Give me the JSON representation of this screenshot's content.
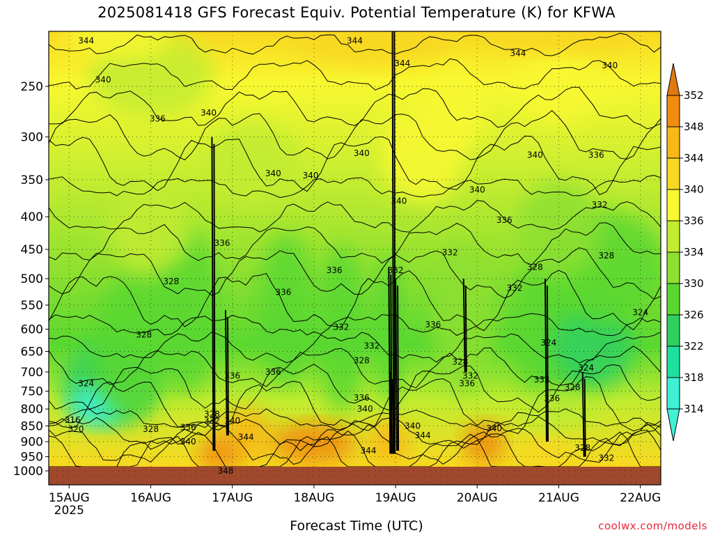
{
  "title": "2025081418 GFS Forecast Equiv. Potential Temperature (K) for KFWA",
  "xlabel": "Forecast Time (UTC)",
  "credit": "coolwx.com/models",
  "colors": {
    "ground": "#a0492d",
    "ground_dots": "#6b2a16",
    "scale": [
      "#3ff0d6",
      "#20e0a0",
      "#30d060",
      "#5ad830",
      "#8ee030",
      "#c2ec30",
      "#f8f830",
      "#f8d820",
      "#f8b818",
      "#f08c10"
    ]
  },
  "chart_data": {
    "type": "heatmap",
    "title": "2025081418 GFS Forecast Equiv. Potential Temperature (K) for KFWA",
    "xlabel": "Forecast Time (UTC)",
    "ylabel": "",
    "y_axis": "pressure (hPa), log scale, inverted",
    "ylim": [
      1000,
      200
    ],
    "y_ticks": [
      250,
      300,
      350,
      400,
      450,
      500,
      550,
      600,
      650,
      700,
      750,
      800,
      850,
      900,
      950,
      1000
    ],
    "x_ticks": [
      {
        "label": "15AUG",
        "sub": "2025",
        "hour": 6
      },
      {
        "label": "16AUG",
        "sub": "",
        "hour": 30
      },
      {
        "label": "17AUG",
        "sub": "",
        "hour": 54
      },
      {
        "label": "18AUG",
        "sub": "",
        "hour": 78
      },
      {
        "label": "19AUG",
        "sub": "",
        "hour": 102
      },
      {
        "label": "20AUG",
        "sub": "",
        "hour": 126
      },
      {
        "label": "21AUG",
        "sub": "",
        "hour": 150
      },
      {
        "label": "22AUG",
        "sub": "",
        "hour": 174
      }
    ],
    "xlim_hours": [
      0,
      180
    ],
    "grid": true,
    "colorbar": {
      "labels": [
        314,
        318,
        322,
        326,
        330,
        334,
        336,
        340,
        344,
        348,
        352
      ],
      "extend": "both"
    },
    "contour_labels": [
      {
        "v": 344,
        "h": 11,
        "p": 212
      },
      {
        "v": 340,
        "h": 16,
        "p": 244
      },
      {
        "v": 336,
        "h": 32,
        "p": 281
      },
      {
        "v": 340,
        "h": 47,
        "p": 275
      },
      {
        "v": 336,
        "h": 51,
        "p": 440
      },
      {
        "v": 328,
        "h": 36,
        "p": 505
      },
      {
        "v": 328,
        "h": 28,
        "p": 612
      },
      {
        "v": 324,
        "h": 11,
        "p": 730
      },
      {
        "v": 316,
        "h": 7,
        "p": 833
      },
      {
        "v": 320,
        "h": 8,
        "p": 860
      },
      {
        "v": 328,
        "h": 30,
        "p": 860
      },
      {
        "v": 336,
        "h": 41,
        "p": 855
      },
      {
        "v": 340,
        "h": 41,
        "p": 900
      },
      {
        "v": 328,
        "h": 48,
        "p": 815
      },
      {
        "v": 332,
        "h": 48,
        "p": 835
      },
      {
        "v": 340,
        "h": 54,
        "p": 835
      },
      {
        "v": 336,
        "h": 54,
        "p": 710
      },
      {
        "v": 344,
        "h": 58,
        "p": 885
      },
      {
        "v": 348,
        "h": 52,
        "p": 1000
      },
      {
        "v": 340,
        "h": 66,
        "p": 342
      },
      {
        "v": 340,
        "h": 77,
        "p": 345
      },
      {
        "v": 336,
        "h": 69,
        "p": 525
      },
      {
        "v": 336,
        "h": 66,
        "p": 700
      },
      {
        "v": 336,
        "h": 84,
        "p": 485
      },
      {
        "v": 332,
        "h": 86,
        "p": 595
      },
      {
        "v": 340,
        "h": 92,
        "p": 318
      },
      {
        "v": 344,
        "h": 90,
        "p": 212
      },
      {
        "v": 328,
        "h": 92,
        "p": 672
      },
      {
        "v": 332,
        "h": 95,
        "p": 637
      },
      {
        "v": 336,
        "h": 92,
        "p": 768
      },
      {
        "v": 340,
        "h": 93,
        "p": 800
      },
      {
        "v": 344,
        "h": 94,
        "p": 930
      },
      {
        "v": 332,
        "h": 102,
        "p": 485
      },
      {
        "v": 344,
        "h": 104,
        "p": 230
      },
      {
        "v": 340,
        "h": 103,
        "p": 378
      },
      {
        "v": 340,
        "h": 107,
        "p": 850
      },
      {
        "v": 344,
        "h": 110,
        "p": 880
      },
      {
        "v": 336,
        "h": 113,
        "p": 590
      },
      {
        "v": 332,
        "h": 118,
        "p": 455
      },
      {
        "v": 340,
        "h": 126,
        "p": 363
      },
      {
        "v": 328,
        "h": 121,
        "p": 675
      },
      {
        "v": 332,
        "h": 124,
        "p": 710
      },
      {
        "v": 336,
        "h": 123,
        "p": 730
      },
      {
        "v": 340,
        "h": 131,
        "p": 858
      },
      {
        "v": 336,
        "h": 134,
        "p": 405
      },
      {
        "v": 332,
        "h": 137,
        "p": 517
      },
      {
        "v": 328,
        "h": 143,
        "p": 480
      },
      {
        "v": 344,
        "h": 138,
        "p": 222
      },
      {
        "v": 340,
        "h": 143,
        "p": 320
      },
      {
        "v": 324,
        "h": 147,
        "p": 630
      },
      {
        "v": 332,
        "h": 145,
        "p": 720
      },
      {
        "v": 336,
        "h": 148,
        "p": 770
      },
      {
        "v": 328,
        "h": 154,
        "p": 740
      },
      {
        "v": 324,
        "h": 158,
        "p": 690
      },
      {
        "v": 336,
        "h": 161,
        "p": 320
      },
      {
        "v": 332,
        "h": 162,
        "p": 383
      },
      {
        "v": 328,
        "h": 164,
        "p": 460
      },
      {
        "v": 340,
        "h": 165,
        "p": 232
      },
      {
        "v": 324,
        "h": 174,
        "p": 565
      },
      {
        "v": 328,
        "h": 157,
        "p": 920
      },
      {
        "v": 332,
        "h": 164,
        "p": 955
      }
    ]
  }
}
